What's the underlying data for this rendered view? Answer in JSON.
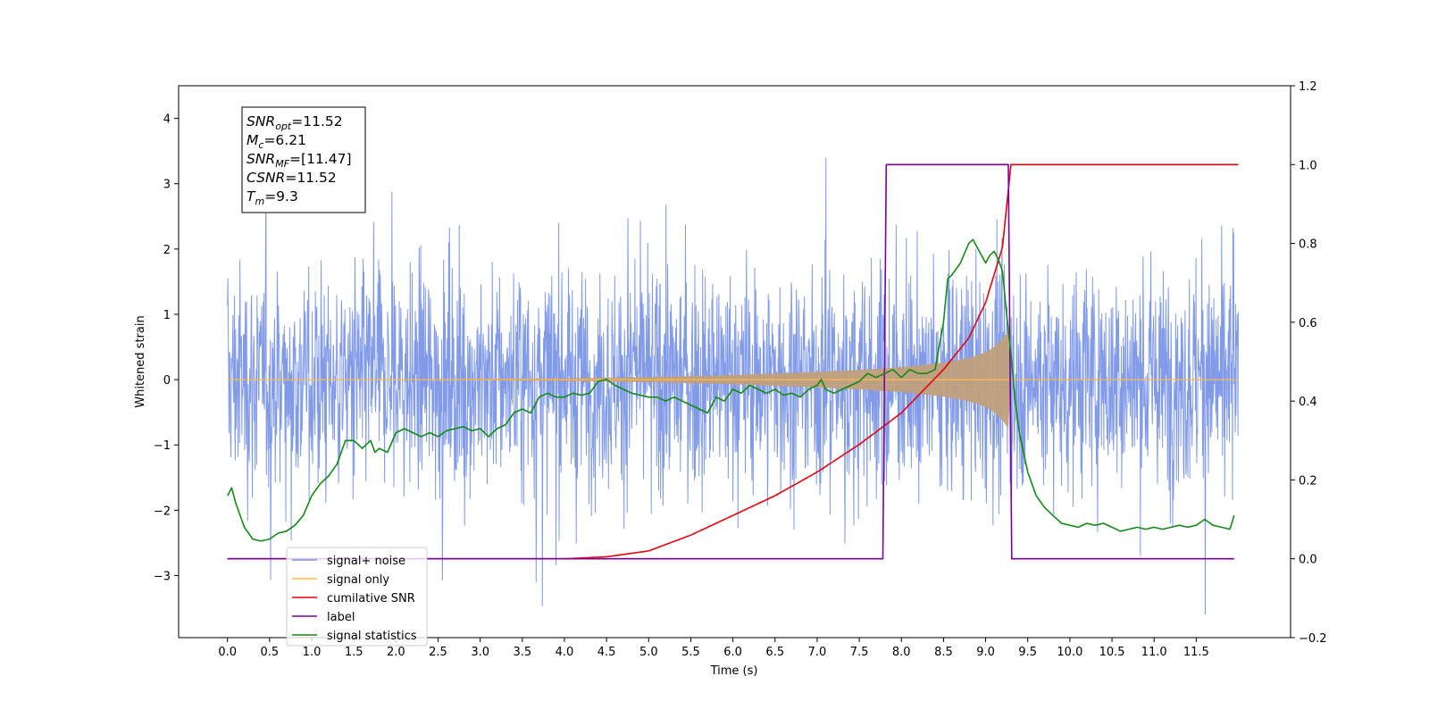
{
  "chart_data": {
    "type": "line",
    "xlabel": "Time (s)",
    "ylabel_left": "Whitened strain",
    "ylabel_right": "",
    "xlim": [
      -0.58,
      12.62
    ],
    "ylim_left": [
      -3.95,
      4.5
    ],
    "ylim_right": [
      -0.2,
      1.2
    ],
    "x_ticks": [
      0.0,
      0.5,
      1.0,
      1.5,
      2.0,
      2.5,
      3.0,
      3.5,
      4.0,
      4.5,
      5.0,
      5.5,
      6.0,
      6.5,
      7.0,
      7.5,
      8.0,
      8.5,
      9.0,
      9.5,
      10.0,
      10.5,
      11.0,
      11.5
    ],
    "x_tick_labels": [
      "0.0",
      "0.5",
      "1.0",
      "1.5",
      "2.0",
      "2.5",
      "3.0",
      "3.5",
      "4.0",
      "4.5",
      "5.0",
      "5.5",
      "6.0",
      "6.5",
      "7.0",
      "7.5",
      "8.0",
      "8.5",
      "9.0",
      "9.5",
      "10.0",
      "10.5",
      "11.0",
      "11.5"
    ],
    "y_left_ticks": [
      -3,
      -2,
      -1,
      0,
      1,
      2,
      3,
      4
    ],
    "y_left_tick_labels": [
      "−3",
      "−2",
      "−1",
      "0",
      "1",
      "2",
      "3",
      "4"
    ],
    "y_right_ticks": [
      -0.2,
      0.0,
      0.2,
      0.4,
      0.6,
      0.8,
      1.0,
      1.2
    ],
    "y_right_tick_labels": [
      "−0.2",
      "0.0",
      "0.2",
      "0.4",
      "0.6",
      "0.8",
      "1.0",
      "1.2"
    ],
    "grid": false,
    "legend_position": "lower-left",
    "annotation_lines": [
      {
        "sym": "SNR",
        "sub": "opt",
        "value": "=11.52"
      },
      {
        "sym": "M",
        "sub": "c",
        "value": "=6.21"
      },
      {
        "sym": "SNR",
        "sub": "MF",
        "value": "=[11.47]"
      },
      {
        "sym": "CSNR",
        "sub": "",
        "value": "=11.52"
      },
      {
        "sym": "T",
        "sub": "m",
        "value": "=9.3"
      }
    ],
    "series": [
      {
        "name": "signal+ noise",
        "axis": "left",
        "color": "#7b96e8",
        "t_start": 0.0,
        "t_end": 12.0,
        "envelope_note": "noise band roughly ±1.5 with spikes to +3.4 and −3.6",
        "max_value": 3.4,
        "min_value": -3.6
      },
      {
        "name": "signal only",
        "axis": "left",
        "color": "#ffb74d",
        "x": [
          0.0,
          2.0,
          4.0,
          5.0,
          6.0,
          7.0,
          7.5,
          8.0,
          8.5,
          8.8,
          9.0,
          9.1,
          9.2,
          9.27,
          9.3,
          12.0
        ],
        "amplitude": [
          0.0,
          0.005,
          0.02,
          0.04,
          0.07,
          0.12,
          0.15,
          0.19,
          0.26,
          0.33,
          0.42,
          0.5,
          0.62,
          0.75,
          0.0,
          0.0
        ]
      },
      {
        "name": "cumilative SNR",
        "axis": "right",
        "color": "#e8000b",
        "x": [
          0.0,
          4.0,
          4.5,
          5.0,
          5.5,
          6.0,
          6.5,
          7.0,
          7.5,
          8.0,
          8.5,
          8.8,
          9.0,
          9.2,
          9.3,
          12.0
        ],
        "y": [
          0.0,
          0.0,
          0.005,
          0.02,
          0.06,
          0.11,
          0.16,
          0.22,
          0.29,
          0.37,
          0.48,
          0.56,
          0.65,
          0.79,
          1.0,
          1.0
        ]
      },
      {
        "name": "label",
        "axis": "right",
        "color": "#7b00a0",
        "x": [
          0.0,
          7.78,
          7.82,
          9.27,
          9.31,
          11.95
        ],
        "y": [
          0.0,
          0.0,
          1.0,
          1.0,
          0.0,
          0.0
        ]
      },
      {
        "name": "signal statistics",
        "axis": "right",
        "color": "#138a13",
        "x": [
          0.0,
          0.05,
          0.1,
          0.2,
          0.3,
          0.4,
          0.5,
          0.6,
          0.7,
          0.8,
          0.9,
          1.0,
          1.1,
          1.2,
          1.3,
          1.4,
          1.5,
          1.6,
          1.7,
          1.75,
          1.8,
          1.9,
          2.0,
          2.1,
          2.2,
          2.3,
          2.4,
          2.5,
          2.6,
          2.7,
          2.8,
          2.9,
          3.0,
          3.1,
          3.2,
          3.3,
          3.4,
          3.5,
          3.6,
          3.7,
          3.8,
          3.9,
          4.0,
          4.1,
          4.2,
          4.3,
          4.4,
          4.5,
          4.6,
          4.7,
          4.8,
          4.9,
          5.0,
          5.1,
          5.2,
          5.3,
          5.4,
          5.5,
          5.6,
          5.7,
          5.8,
          5.9,
          6.0,
          6.1,
          6.2,
          6.3,
          6.4,
          6.5,
          6.6,
          6.7,
          6.8,
          6.9,
          7.0,
          7.05,
          7.1,
          7.2,
          7.3,
          7.4,
          7.5,
          7.6,
          7.7,
          7.8,
          7.9,
          8.0,
          8.1,
          8.2,
          8.3,
          8.4,
          8.5,
          8.55,
          8.6,
          8.7,
          8.8,
          8.85,
          8.9,
          8.95,
          9.0,
          9.05,
          9.1,
          9.15,
          9.2,
          9.25,
          9.3,
          9.35,
          9.4,
          9.5,
          9.6,
          9.7,
          9.8,
          9.9,
          10.0,
          10.1,
          10.2,
          10.3,
          10.4,
          10.5,
          10.6,
          10.7,
          10.8,
          10.9,
          11.0,
          11.1,
          11.2,
          11.3,
          11.4,
          11.5,
          11.6,
          11.7,
          11.8,
          11.9,
          11.95
        ],
        "y": [
          0.16,
          0.18,
          0.14,
          0.08,
          0.05,
          0.045,
          0.05,
          0.065,
          0.07,
          0.085,
          0.11,
          0.16,
          0.19,
          0.21,
          0.24,
          0.3,
          0.3,
          0.28,
          0.3,
          0.27,
          0.28,
          0.27,
          0.32,
          0.33,
          0.32,
          0.31,
          0.32,
          0.31,
          0.325,
          0.33,
          0.335,
          0.325,
          0.33,
          0.31,
          0.33,
          0.34,
          0.37,
          0.38,
          0.37,
          0.41,
          0.42,
          0.41,
          0.41,
          0.42,
          0.415,
          0.42,
          0.45,
          0.455,
          0.44,
          0.43,
          0.42,
          0.415,
          0.41,
          0.41,
          0.4,
          0.41,
          0.4,
          0.39,
          0.38,
          0.37,
          0.41,
          0.4,
          0.43,
          0.42,
          0.44,
          0.43,
          0.42,
          0.43,
          0.415,
          0.42,
          0.41,
          0.43,
          0.44,
          0.455,
          0.43,
          0.42,
          0.43,
          0.44,
          0.45,
          0.47,
          0.46,
          0.47,
          0.48,
          0.46,
          0.48,
          0.47,
          0.47,
          0.48,
          0.6,
          0.71,
          0.72,
          0.75,
          0.8,
          0.81,
          0.79,
          0.77,
          0.75,
          0.77,
          0.78,
          0.76,
          0.73,
          0.62,
          0.52,
          0.4,
          0.32,
          0.22,
          0.16,
          0.13,
          0.11,
          0.09,
          0.085,
          0.08,
          0.09,
          0.085,
          0.09,
          0.08,
          0.07,
          0.075,
          0.08,
          0.075,
          0.08,
          0.075,
          0.08,
          0.085,
          0.08,
          0.085,
          0.1,
          0.085,
          0.08,
          0.075,
          0.11
        ]
      }
    ]
  }
}
